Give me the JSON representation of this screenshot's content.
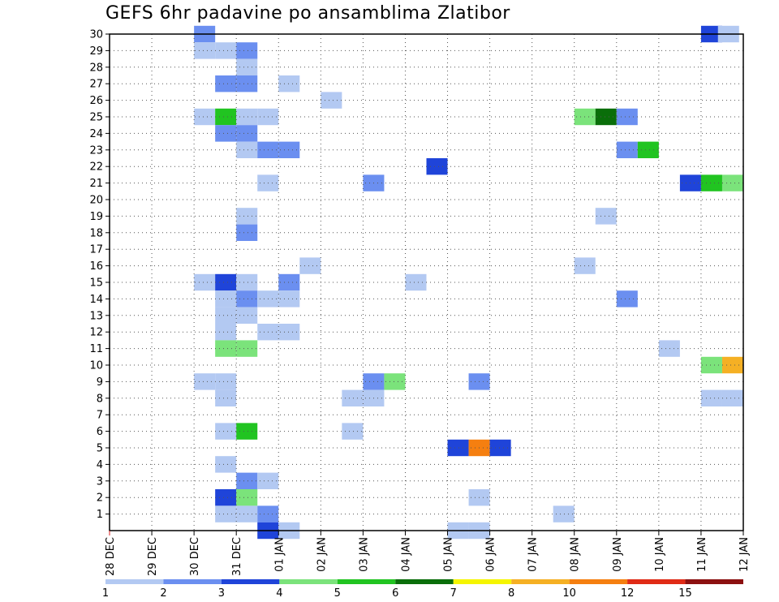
{
  "chart_data": {
    "type": "heatmap",
    "title": "GEFS 6hr padavine po ansamblima Zlatibor",
    "xlabel": "",
    "ylabel": "",
    "x_ticks": [
      "28 DEC",
      "29 DEC",
      "30 DEC",
      "31 DEC",
      "01 JAN",
      "02 JAN",
      "03 JAN",
      "04 JAN",
      "05 JAN",
      "06 JAN",
      "07 JAN",
      "08 JAN",
      "09 JAN",
      "10 JAN",
      "11 JAN",
      "12 JAN"
    ],
    "y_ticks": [
      1,
      2,
      3,
      4,
      5,
      6,
      7,
      8,
      9,
      10,
      11,
      12,
      13,
      14,
      15,
      16,
      17,
      18,
      19,
      20,
      21,
      22,
      23,
      24,
      25,
      26,
      27,
      28,
      29,
      30
    ],
    "time_step_hours": 6,
    "xlim": [
      "28 DEC 00Z",
      "12 JAN 00Z"
    ],
    "ylim": [
      0,
      30
    ],
    "grid": true,
    "colorbar": {
      "levels": [
        "1",
        "2",
        "3",
        "4",
        "5",
        "6",
        "7",
        "8",
        "10",
        "12",
        "15",
        "20"
      ],
      "colors": [
        "#b3c9f2",
        "#6b8ff0",
        "#1f44d9",
        "#7be37b",
        "#21c421",
        "#0a6e0a",
        "#f5f500",
        "#f5b024",
        "#f57f10",
        "#e02b16",
        "#8c1010"
      ]
    },
    "cells": [
      [
        30,
        2,
        2.6
      ],
      [
        30,
        14,
        3.2
      ],
      [
        30,
        14.4,
        1.5
      ],
      [
        30,
        20,
        2.2
      ],
      [
        30,
        20.4,
        1.5
      ],
      [
        30,
        21,
        1.5
      ],
      [
        29,
        2,
        1.5
      ],
      [
        29,
        2.5,
        1.5
      ],
      [
        29,
        3,
        2.2
      ],
      [
        29,
        16.5,
        1.5
      ],
      [
        29,
        17,
        2.4
      ],
      [
        29,
        17.5,
        10
      ],
      [
        29,
        18,
        11
      ],
      [
        29,
        18.5,
        6
      ],
      [
        29,
        19,
        5.5
      ],
      [
        29,
        19.5,
        3.5
      ],
      [
        29,
        20,
        3.5
      ],
      [
        29,
        20.5,
        5
      ],
      [
        29,
        21,
        2.2
      ],
      [
        29,
        24,
        3.5
      ],
      [
        29,
        24.5,
        1.5
      ],
      [
        28,
        3,
        1.5
      ],
      [
        28,
        23,
        6.5
      ],
      [
        28,
        23.5,
        1.5
      ],
      [
        27,
        2.5,
        2.2
      ],
      [
        27,
        3,
        2.2
      ],
      [
        27,
        4,
        1.5
      ],
      [
        27,
        21.5,
        3.5
      ],
      [
        27,
        22,
        1.5
      ],
      [
        26,
        5,
        1.5
      ],
      [
        26,
        17,
        1.5
      ],
      [
        26,
        17.5,
        1.5
      ],
      [
        26,
        20,
        1.5
      ],
      [
        26,
        21,
        1.5
      ],
      [
        26,
        21.5,
        1.5
      ],
      [
        26,
        27.5,
        1.5
      ],
      [
        26,
        29,
        2.2
      ],
      [
        25,
        2,
        1.5
      ],
      [
        25,
        2.5,
        5.5
      ],
      [
        25,
        3,
        1.5
      ],
      [
        25,
        3.5,
        1.5
      ],
      [
        25,
        11,
        4.5
      ],
      [
        25,
        11.5,
        6.5
      ],
      [
        25,
        12,
        2.2
      ],
      [
        25,
        29.5,
        1.5
      ],
      [
        24,
        2.5,
        2.2
      ],
      [
        24,
        3,
        2.2
      ],
      [
        24,
        23,
        3.2
      ],
      [
        23,
        3,
        1.5
      ],
      [
        23,
        3.5,
        2.2
      ],
      [
        23,
        4,
        2.2
      ],
      [
        23,
        12,
        2.2
      ],
      [
        23,
        12.5,
        5.5
      ],
      [
        23,
        23,
        1.5
      ],
      [
        23,
        23.5,
        2.2
      ],
      [
        23,
        24,
        1.5
      ],
      [
        23,
        24.5,
        1.5
      ],
      [
        23,
        25,
        1.5
      ],
      [
        23,
        25.5,
        2.2
      ],
      [
        23,
        26,
        1.5
      ],
      [
        22,
        7.5,
        3.2
      ],
      [
        21,
        3.5,
        1.5
      ],
      [
        21,
        6,
        2.2
      ],
      [
        21,
        13.5,
        3.2
      ],
      [
        21,
        14,
        5.5
      ],
      [
        21,
        14.5,
        4.5
      ],
      [
        21,
        25,
        1.5
      ],
      [
        21,
        25.5,
        2.2
      ],
      [
        21,
        26,
        16
      ],
      [
        21,
        26.5,
        2.2
      ],
      [
        21,
        27,
        1.5
      ],
      [
        21,
        27.5,
        1.5
      ],
      [
        21,
        28.5,
        1.5
      ],
      [
        21,
        29,
        2.2
      ],
      [
        20,
        16,
        4.5
      ],
      [
        20,
        16.5,
        2.2
      ],
      [
        20,
        19.5,
        2.2
      ],
      [
        20,
        20,
        2.2
      ],
      [
        20,
        20.5,
        1.5
      ],
      [
        20,
        21.5,
        1.5
      ],
      [
        20,
        22,
        1.5
      ],
      [
        20,
        24.5,
        1.5
      ],
      [
        20,
        25,
        5
      ],
      [
        20,
        25.5,
        3.2
      ],
      [
        20,
        26,
        1.5
      ],
      [
        19,
        3,
        1.5
      ],
      [
        19,
        11.5,
        1.5
      ],
      [
        19,
        28,
        1.5
      ],
      [
        19,
        28.5,
        11
      ],
      [
        19,
        29,
        1.5
      ],
      [
        18,
        3,
        2.2
      ],
      [
        18,
        20,
        1.5
      ],
      [
        17,
        20,
        4.5
      ],
      [
        17,
        20.5,
        6.5
      ],
      [
        17,
        21,
        4.5
      ],
      [
        16,
        4.5,
        1.5
      ],
      [
        16,
        11,
        1.5
      ],
      [
        16,
        20.5,
        3.2
      ],
      [
        16,
        22,
        1.5
      ],
      [
        16,
        24,
        5.5
      ],
      [
        16,
        24.5,
        2.2
      ],
      [
        16,
        25,
        2.2
      ],
      [
        16,
        25.5,
        3.2
      ],
      [
        16,
        26,
        2.2
      ],
      [
        16,
        26.5,
        4.5
      ],
      [
        16,
        27,
        4.5
      ],
      [
        16,
        27.5,
        4.5
      ],
      [
        16,
        28,
        1.5
      ],
      [
        15,
        2,
        1.5
      ],
      [
        15,
        2.5,
        3.2
      ],
      [
        15,
        3,
        1.5
      ],
      [
        15,
        4,
        2.2
      ],
      [
        15,
        7,
        1.5
      ],
      [
        15,
        17,
        2.2
      ],
      [
        15,
        17.5,
        2.2
      ],
      [
        15,
        18,
        2.2
      ],
      [
        15,
        18.5,
        2.2
      ],
      [
        15,
        22.5,
        2.2
      ],
      [
        15,
        23.5,
        1.5
      ],
      [
        15,
        24,
        1.5
      ],
      [
        15,
        29.5,
        2.2
      ],
      [
        14,
        2.5,
        1.5
      ],
      [
        14,
        3,
        2.2
      ],
      [
        14,
        3.5,
        1.5
      ],
      [
        14,
        4,
        1.5
      ],
      [
        14,
        12,
        2.2
      ],
      [
        14,
        18,
        1.5
      ],
      [
        14,
        18.5,
        1.5
      ],
      [
        14,
        22.5,
        2.2
      ],
      [
        14,
        24,
        1.5
      ],
      [
        14,
        29,
        1.5
      ],
      [
        14,
        29.5,
        2.2
      ],
      [
        13,
        2.5,
        1.5
      ],
      [
        13,
        3,
        1.5
      ],
      [
        12,
        2.5,
        1.5
      ],
      [
        12,
        3.5,
        1.5
      ],
      [
        12,
        4,
        1.5
      ],
      [
        12,
        17.5,
        1.5
      ],
      [
        12,
        18.5,
        1.5
      ],
      [
        12,
        26,
        1.5
      ],
      [
        12,
        26.5,
        1.5
      ],
      [
        12,
        27,
        2.2
      ],
      [
        12,
        29.5,
        1.5
      ],
      [
        11,
        2.5,
        4.5
      ],
      [
        11,
        3,
        4.5
      ],
      [
        11,
        13,
        1.5
      ],
      [
        11,
        17,
        10
      ],
      [
        11,
        17.5,
        3.2
      ],
      [
        11,
        18,
        1.5
      ],
      [
        11,
        21,
        1.5
      ],
      [
        11,
        21.5,
        5.5
      ],
      [
        11,
        22,
        4.5
      ],
      [
        11,
        22.5,
        3.2
      ],
      [
        11,
        23,
        2.2
      ],
      [
        11,
        23.5,
        1.5
      ],
      [
        10,
        14,
        4.5
      ],
      [
        10,
        14.5,
        8
      ],
      [
        10,
        19.5,
        2.2
      ],
      [
        10,
        20,
        2.2
      ],
      [
        9,
        2,
        1.5
      ],
      [
        9,
        2.5,
        1.5
      ],
      [
        9,
        6,
        2.2
      ],
      [
        9,
        6.5,
        4.5
      ],
      [
        9,
        8.5,
        2.2
      ],
      [
        9,
        24,
        1.5
      ],
      [
        9,
        24.5,
        1.5
      ],
      [
        9,
        29,
        3.2
      ],
      [
        9,
        29.5,
        2.2
      ],
      [
        8,
        2.5,
        1.5
      ],
      [
        8,
        5.5,
        1.5
      ],
      [
        8,
        6,
        1.5
      ],
      [
        8,
        14,
        1.5
      ],
      [
        8,
        14.5,
        1.5
      ],
      [
        8,
        18.5,
        1.5
      ],
      [
        8,
        19,
        1.5
      ],
      [
        8,
        27.5,
        1.5
      ],
      [
        8,
        28,
        2.2
      ],
      [
        7,
        15,
        1.5
      ],
      [
        7,
        15.5,
        1.5
      ],
      [
        7,
        16,
        1.5
      ],
      [
        7,
        16.5,
        5
      ],
      [
        7,
        17,
        5
      ],
      [
        7,
        17.5,
        2.2
      ],
      [
        7,
        18,
        1.5
      ],
      [
        7,
        18.5,
        1.5
      ],
      [
        7,
        20,
        4.5
      ],
      [
        7,
        20.5,
        2.2
      ],
      [
        7,
        21,
        2.2
      ],
      [
        7,
        21.5,
        2.2
      ],
      [
        7,
        22,
        1.5
      ],
      [
        7,
        23,
        1.5
      ],
      [
        7,
        23.5,
        1.5
      ],
      [
        7,
        24,
        1.5
      ],
      [
        7,
        24.5,
        1.5
      ],
      [
        7,
        25,
        1.5
      ],
      [
        7,
        25.5,
        1.5
      ],
      [
        7,
        29,
        2.2
      ],
      [
        7,
        29.5,
        3.2
      ],
      [
        6,
        2.5,
        1.5
      ],
      [
        6,
        3,
        5.5
      ],
      [
        6,
        5.5,
        1.5
      ],
      [
        6,
        17,
        2.2
      ],
      [
        6,
        17.5,
        10
      ],
      [
        6,
        18,
        3.2
      ],
      [
        6,
        22.5,
        1.5
      ],
      [
        6,
        28,
        1.5
      ],
      [
        5,
        8,
        3.2
      ],
      [
        5,
        8.5,
        10
      ],
      [
        5,
        9,
        3.2
      ],
      [
        5,
        18,
        2.2
      ],
      [
        5,
        18.5,
        1.5
      ],
      [
        5,
        19,
        1.5
      ],
      [
        5,
        19.5,
        1.5
      ],
      [
        5,
        20,
        1.5
      ],
      [
        4,
        2.5,
        1.5
      ],
      [
        4,
        21,
        1.5
      ],
      [
        4,
        21.5,
        1.5
      ],
      [
        4,
        22,
        11
      ],
      [
        4,
        22.5,
        4.5
      ],
      [
        4,
        23,
        3.2
      ],
      [
        4,
        23.5,
        2.2
      ],
      [
        4,
        24,
        3.2
      ],
      [
        4,
        24.5,
        1.5
      ],
      [
        4,
        25,
        1.5
      ],
      [
        4,
        26,
        3.2
      ],
      [
        3,
        3,
        2.2
      ],
      [
        3,
        3.5,
        1.5
      ],
      [
        3,
        18,
        6.5
      ],
      [
        3,
        18.5,
        4.5
      ],
      [
        3,
        19,
        1.5
      ],
      [
        2,
        2.5,
        3.2
      ],
      [
        2,
        3,
        4.5
      ],
      [
        2,
        8.5,
        1.5
      ],
      [
        2,
        16.5,
        1.5
      ],
      [
        2,
        17,
        1.5
      ],
      [
        2,
        17.5,
        1.5
      ],
      [
        2,
        22,
        2.2
      ],
      [
        2,
        22.5,
        1.5
      ],
      [
        2,
        23,
        1.5
      ],
      [
        2,
        23.5,
        2.2
      ],
      [
        2,
        24,
        2.2
      ],
      [
        2,
        24.5,
        1.5
      ],
      [
        2,
        25,
        1.5
      ],
      [
        2,
        26,
        1.5
      ],
      [
        2,
        26.5,
        1.5
      ],
      [
        2,
        27,
        1.5
      ],
      [
        2,
        27.5,
        1.5
      ],
      [
        1,
        2.5,
        1.5
      ],
      [
        1,
        3,
        1.5
      ],
      [
        1,
        3.5,
        2.2
      ],
      [
        1,
        10.5,
        1.5
      ],
      [
        1,
        15.5,
        11
      ],
      [
        1,
        16,
        5.5
      ],
      [
        1,
        16.5,
        2.2
      ],
      [
        1,
        19,
        2.2
      ],
      [
        1,
        19.5,
        2.2
      ],
      [
        1,
        20,
        1.5
      ],
      [
        0,
        3.5,
        3.2
      ],
      [
        0,
        4,
        1.5
      ],
      [
        0,
        8,
        1.5
      ],
      [
        0,
        8.5,
        1.5
      ],
      [
        0,
        18,
        2.2
      ],
      [
        0,
        18.5,
        10
      ],
      [
        0,
        19,
        5.5
      ]
    ]
  }
}
